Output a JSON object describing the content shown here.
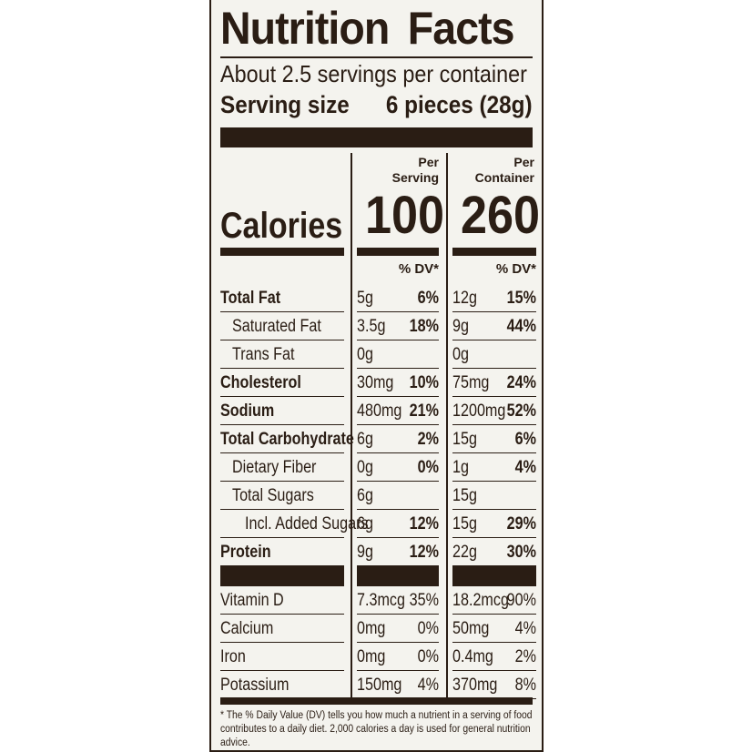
{
  "label": {
    "title_word1": "Nutrition",
    "title_word2": "Facts",
    "servings_per_container": "About 2.5 servings per container",
    "serving_size_label": "Serving size",
    "serving_size_value": "6 pieces (28g)",
    "per_serving_head": [
      "Per",
      "Serving"
    ],
    "per_container_head": [
      "Per",
      "Container"
    ],
    "calories_label": "Calories",
    "calories_serving": "100",
    "calories_container": "260",
    "dv_head_serving": "% DV*",
    "dv_head_container": "% DV*",
    "nutrients": [
      {
        "name": "Total Fat",
        "bold": true,
        "indent": 0,
        "s_amt": "5g",
        "s_dv": "6%",
        "c_amt": "12g",
        "c_dv": "15%"
      },
      {
        "name": "Saturated Fat",
        "bold": false,
        "indent": 1,
        "s_amt": "3.5g",
        "s_dv": "18%",
        "c_amt": "9g",
        "c_dv": "44%"
      },
      {
        "name": "Trans Fat",
        "bold": false,
        "indent": 1,
        "s_amt": "0g",
        "s_dv": "",
        "c_amt": "0g",
        "c_dv": ""
      },
      {
        "name": "Cholesterol",
        "bold": true,
        "indent": 0,
        "s_amt": "30mg",
        "s_dv": "10%",
        "c_amt": "75mg",
        "c_dv": "24%"
      },
      {
        "name": "Sodium",
        "bold": true,
        "indent": 0,
        "s_amt": "480mg",
        "s_dv": "21%",
        "c_amt": "1200mg",
        "c_dv": "52%"
      },
      {
        "name": "Total Carbohydrate",
        "bold": true,
        "indent": 0,
        "s_amt": "6g",
        "s_dv": "2%",
        "c_amt": "15g",
        "c_dv": "6%"
      },
      {
        "name": "Dietary Fiber",
        "bold": false,
        "indent": 1,
        "s_amt": "0g",
        "s_dv": "0%",
        "c_amt": "1g",
        "c_dv": "4%"
      },
      {
        "name": "Total Sugars",
        "bold": false,
        "indent": 1,
        "s_amt": "6g",
        "s_dv": "",
        "c_amt": "15g",
        "c_dv": ""
      },
      {
        "name": "Incl. Added Sugars",
        "bold": false,
        "indent": 2,
        "s_amt": "6g",
        "s_dv": "12%",
        "c_amt": "15g",
        "c_dv": "29%"
      },
      {
        "name": "Protein",
        "bold": true,
        "indent": 0,
        "s_amt": "9g",
        "s_dv": "12%",
        "c_amt": "22g",
        "c_dv": "30%"
      }
    ],
    "vitamins": [
      {
        "name": "Vitamin D",
        "s_amt": "7.3mcg",
        "s_dv": "35%",
        "c_amt": "18.2mcg",
        "c_dv": "90%"
      },
      {
        "name": "Calcium",
        "s_amt": "0mg",
        "s_dv": "0%",
        "c_amt": "50mg",
        "c_dv": "4%"
      },
      {
        "name": "Iron",
        "s_amt": "0mg",
        "s_dv": "0%",
        "c_amt": "0.4mg",
        "c_dv": "2%"
      },
      {
        "name": "Potassium",
        "s_amt": "150mg",
        "s_dv": "4%",
        "c_amt": "370mg",
        "c_dv": "8%"
      }
    ],
    "footnote": "* The % Daily Value (DV) tells you how much a nutrient in a serving of food contributes to a daily diet. 2,000 calories a day is used for general nutrition advice."
  },
  "colors": {
    "ink": "#2a1d14",
    "background": "#f4f3ee"
  }
}
